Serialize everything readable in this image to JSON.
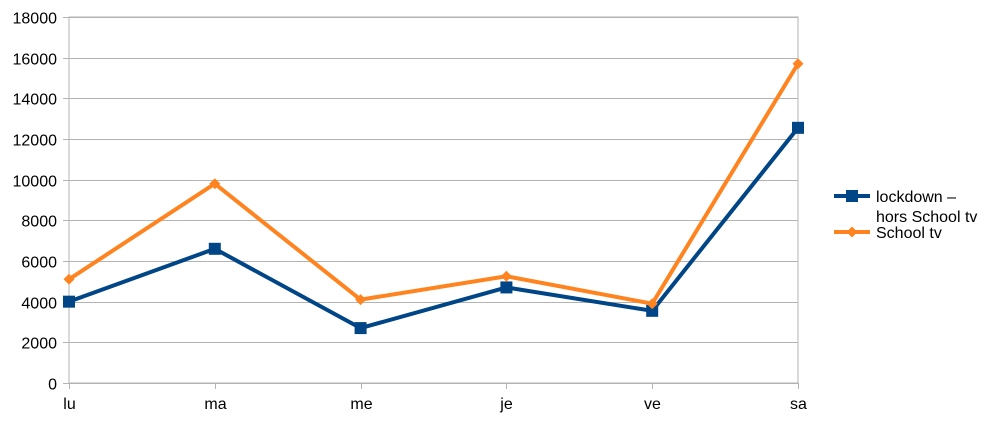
{
  "chart_data": {
    "type": "line",
    "title": "",
    "xlabel": "",
    "ylabel": "",
    "categories": [
      "lu",
      "ma",
      "me",
      "je",
      "ve",
      "sa"
    ],
    "ylim": [
      0,
      18000
    ],
    "yticks": [
      0,
      2000,
      4000,
      6000,
      8000,
      10000,
      12000,
      14000,
      16000,
      18000
    ],
    "grid": "horizontal",
    "legend_position": "right",
    "series": [
      {
        "name_lines": [
          "lockdown –",
          "hors School tv"
        ],
        "color": "#004586",
        "marker": "square",
        "values": [
          4000,
          6600,
          2700,
          4700,
          3550,
          12550
        ]
      },
      {
        "name_lines": [
          "School tv"
        ],
        "color": "#ff8420",
        "marker": "diamond",
        "values": [
          5100,
          9800,
          4100,
          5250,
          3900,
          15700
        ]
      }
    ]
  }
}
